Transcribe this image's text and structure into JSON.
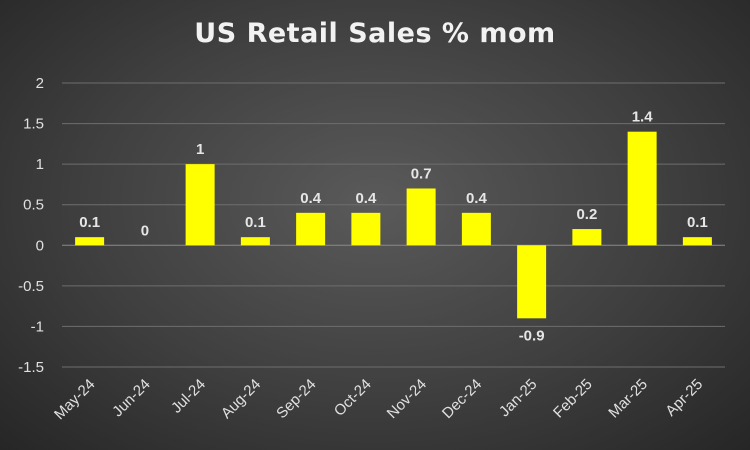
{
  "chart_data": {
    "type": "bar",
    "title": "US Retail Sales % mom",
    "categories": [
      "May-24",
      "Jun-24",
      "Jul-24",
      "Aug-24",
      "Sep-24",
      "Oct-24",
      "Nov-24",
      "Dec-24",
      "Jan-25",
      "Feb-25",
      "Mar-25",
      "Apr-25"
    ],
    "values": [
      0.1,
      0,
      1,
      0.1,
      0.4,
      0.4,
      0.7,
      0.4,
      -0.9,
      0.2,
      1.4,
      0.1
    ],
    "data_labels": [
      "0.1",
      "0",
      "1",
      "0.1",
      "0.4",
      "0.4",
      "0.7",
      "0.4",
      "-0.9",
      "0.2",
      "1.4",
      "0.1"
    ],
    "yticks": [
      "2",
      "1.5",
      "1",
      "0.5",
      "0",
      "-0.5",
      "-1",
      "-1.5"
    ],
    "ylim": [
      -1.5,
      2
    ],
    "ytick_values": [
      2,
      1.5,
      1,
      0.5,
      0,
      -0.5,
      -1,
      -1.5
    ],
    "grid": true,
    "legend": "none",
    "bar_color": "#ffff00",
    "background": "#3f3f3f"
  }
}
